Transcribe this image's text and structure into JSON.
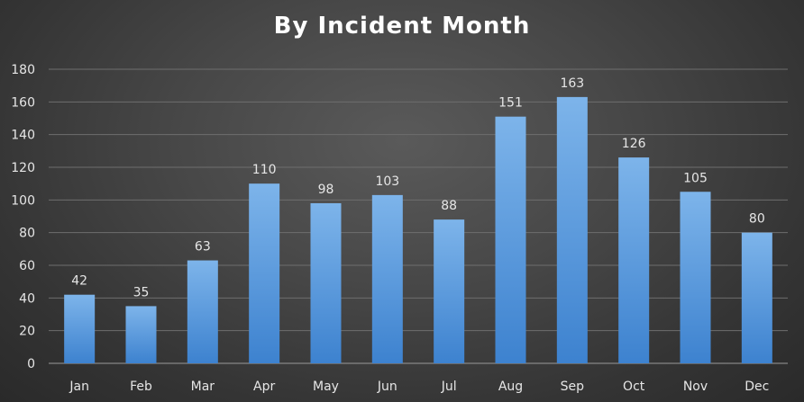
{
  "chart_data": {
    "type": "bar",
    "title": "By Incident Month",
    "categories": [
      "Jan",
      "Feb",
      "Mar",
      "Apr",
      "May",
      "Jun",
      "Jul",
      "Aug",
      "Sep",
      "Oct",
      "Nov",
      "Dec"
    ],
    "values": [
      42,
      35,
      63,
      110,
      98,
      103,
      88,
      151,
      163,
      126,
      105,
      80
    ],
    "xlabel": "",
    "ylabel": "",
    "ylim": [
      0,
      180
    ],
    "yticks": [
      0,
      20,
      40,
      60,
      80,
      100,
      120,
      140,
      160,
      180
    ],
    "grid": true,
    "data_labels": true,
    "legend": "none",
    "colors": {
      "bar_top": "#7db4ea",
      "bar_bottom": "#3d82cf",
      "background": "#3f3f3f",
      "text": "#e6e6e6"
    }
  }
}
